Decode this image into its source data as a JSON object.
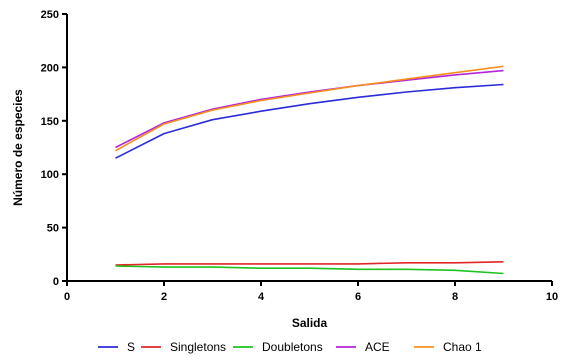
{
  "chart_data": {
    "type": "line",
    "xlabel": "Salida",
    "ylabel": "Número de especies",
    "xlim": [
      0,
      10
    ],
    "ylim": [
      0,
      250
    ],
    "xticks": [
      "0",
      "2",
      "4",
      "6",
      "8",
      "10"
    ],
    "yticks": [
      "0",
      "50",
      "100",
      "150",
      "200",
      "250"
    ],
    "grid": false,
    "legend_position": "bottom",
    "x": [
      1,
      2,
      3,
      4,
      5,
      6,
      7,
      8,
      9
    ],
    "series": [
      {
        "name": "S",
        "color": "#2b2bd9",
        "values": [
          115,
          138,
          151,
          159,
          166,
          172,
          177,
          181,
          184
        ]
      },
      {
        "name": "Singletons",
        "color": "#e02626",
        "values": [
          15,
          16,
          16,
          16,
          16,
          16,
          17,
          17,
          18
        ]
      },
      {
        "name": "Doubletons",
        "color": "#1fc21f",
        "values": [
          14,
          13,
          13,
          12,
          12,
          11,
          11,
          10,
          7
        ]
      },
      {
        "name": "ACE",
        "color": "#b526d9",
        "values": [
          125,
          148,
          161,
          170,
          177,
          183,
          188,
          193,
          197
        ]
      },
      {
        "name": "Chao 1",
        "color": "#f5901e",
        "values": [
          122,
          147,
          160,
          169,
          176,
          183,
          189,
          195,
          201
        ]
      }
    ]
  }
}
